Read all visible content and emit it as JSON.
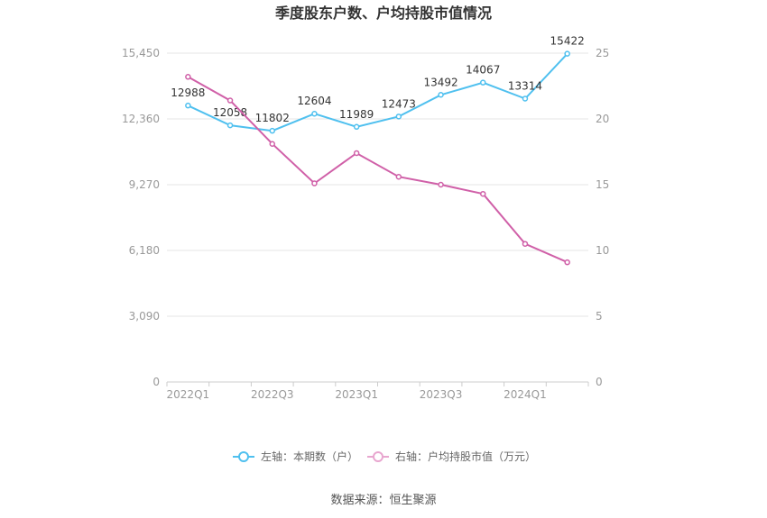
{
  "chart_data": {
    "type": "line",
    "title": "季度股东户数、户均持股市值情况",
    "categories": [
      "2022Q1",
      "2022Q2",
      "2022Q3",
      "2022Q4",
      "2023Q1",
      "2023Q2",
      "2023Q3",
      "2023Q4",
      "2024Q1",
      "2024Q2"
    ],
    "x_tick_labels": [
      "2022Q1",
      "2022Q3",
      "2023Q1",
      "2023Q3",
      "2024Q1"
    ],
    "left_axis": {
      "ylim": [
        0,
        15450
      ],
      "ticks": [
        0,
        3090,
        6180,
        9270,
        12360,
        15450
      ],
      "tick_labels": [
        "0",
        "3,090",
        "6,180",
        "9,270",
        "12,360",
        "15,450"
      ]
    },
    "right_axis": {
      "ylim": [
        0,
        25
      ],
      "ticks": [
        0,
        5,
        10,
        15,
        20,
        25
      ],
      "tick_labels": [
        "0",
        "5",
        "10",
        "15",
        "20",
        "25"
      ]
    },
    "series": [
      {
        "name": "左轴：本期数（户）",
        "axis": "left",
        "color": "#4fc0ef",
        "values": [
          12988,
          12058,
          11802,
          12604,
          11989,
          12473,
          13492,
          14067,
          13314,
          15422
        ],
        "labels": [
          "12988",
          "12058",
          "11802",
          "12604",
          "11989",
          "12473",
          "13492",
          "14067",
          "13314",
          "15422"
        ]
      },
      {
        "name": "右轴：户均持股市值（万元）",
        "axis": "right",
        "color": "#d060a8",
        "values": [
          23.2,
          21.4,
          18.1,
          15.1,
          17.4,
          15.6,
          15.0,
          14.3,
          10.5,
          9.1
        ]
      }
    ],
    "legend_position": "bottom",
    "grid": true
  },
  "source_text": "数据来源：恒生聚源"
}
